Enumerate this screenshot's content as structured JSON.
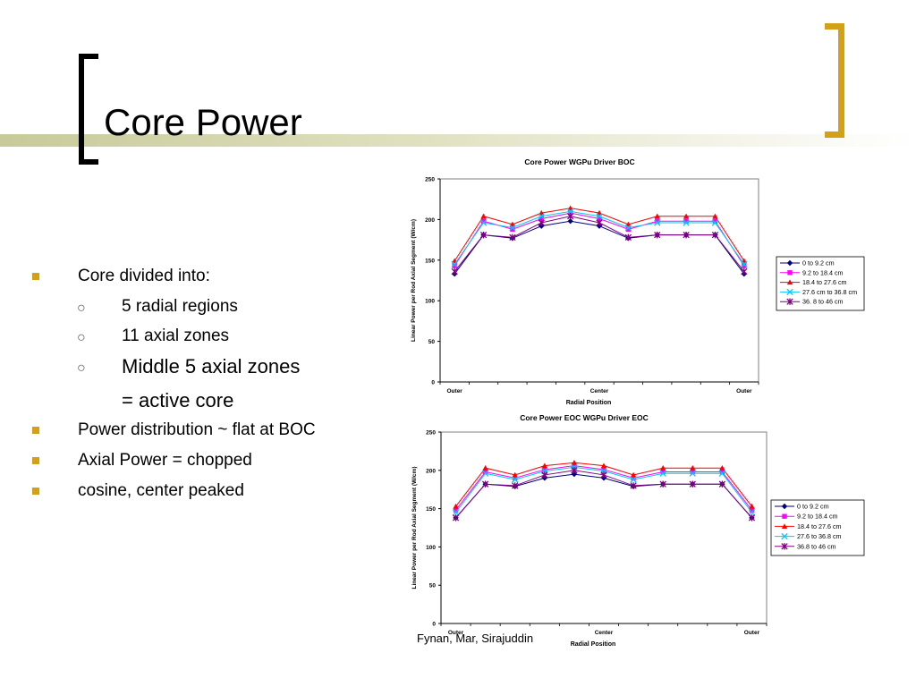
{
  "slide": {
    "title": "Core Power",
    "credit": "Fynan, Mar, Sirajuddin"
  },
  "bullets": [
    {
      "level": 1,
      "text": "Core divided into:"
    },
    {
      "level": 2,
      "text": "5 radial regions"
    },
    {
      "level": 2,
      "text": "11 axial zones"
    },
    {
      "level": 2,
      "text": "Middle 5 axial zones",
      "large": true
    },
    {
      "level": 3,
      "text": "=  active core",
      "large": true
    },
    {
      "level": 1,
      "text": "Power distribution ~ flat at BOC"
    },
    {
      "level": 1,
      "text": "Axial Power = chopped"
    },
    {
      "level": 1,
      "text": "cosine, center peaked"
    }
  ],
  "chart_data": [
    {
      "type": "line",
      "title": "Core Power WGPu Driver BOC",
      "xlabel": "Radial Position",
      "ylabel": "Linear Power per Rod Axial Segment (W/cm)",
      "ylim": [
        0,
        250
      ],
      "yticks": [
        0,
        50,
        100,
        150,
        200,
        250
      ],
      "x_tick_labels": [
        {
          "index": 0,
          "label": "Outer"
        },
        {
          "index": 5,
          "label": "Center"
        },
        {
          "index": 10,
          "label": "Outer"
        }
      ],
      "grid": false,
      "legend": "right",
      "series": [
        {
          "name": "0 to 9.2 cm",
          "color": "#000080",
          "marker": "diamond",
          "values": [
            133,
            181,
            177,
            192,
            198,
            192,
            177,
            181,
            181,
            181,
            133
          ]
        },
        {
          "name": "9.2 to 18.4 cm",
          "color": "#ff00ff",
          "marker": "square",
          "values": [
            143,
            198,
            188,
            201,
            208,
            201,
            188,
            198,
            198,
            198,
            143
          ]
        },
        {
          "name": "18.4 to 27.6 cm",
          "color": "#ff0000",
          "marker": "triangle",
          "values": [
            149,
            204,
            194,
            208,
            214,
            208,
            194,
            204,
            204,
            204,
            149
          ]
        },
        {
          "name": "27.6 cm to 36.8 cm",
          "color": "#00c8ff",
          "marker": "x",
          "values": [
            145,
            196,
            190,
            204,
            210,
            204,
            190,
            196,
            196,
            196,
            145
          ]
        },
        {
          "name": "36. 8 to 46 cm",
          "color": "#800080",
          "marker": "star",
          "values": [
            136,
            181,
            178,
            196,
            204,
            196,
            178,
            181,
            181,
            181,
            136
          ]
        }
      ]
    },
    {
      "type": "line",
      "title": "Core Power EOC WGPu Driver EOC",
      "xlabel": "Radial Position",
      "ylabel": "Linear Power per Rod Axial Segment (W/cm)",
      "ylim": [
        0,
        250
      ],
      "yticks": [
        0,
        50,
        100,
        150,
        200,
        250
      ],
      "x_tick_labels": [
        {
          "index": 0,
          "label": "Outer"
        },
        {
          "index": 5,
          "label": "Center"
        },
        {
          "index": 10,
          "label": "Outer"
        }
      ],
      "grid": false,
      "legend": "right",
      "series": [
        {
          "name": "0 to 9.2 cm",
          "color": "#000080",
          "marker": "diamond",
          "values": [
            138,
            182,
            179,
            190,
            195,
            190,
            179,
            182,
            182,
            182,
            138
          ]
        },
        {
          "name": "9.2 to 18.4 cm",
          "color": "#ff00ff",
          "marker": "square",
          "values": [
            148,
            198,
            190,
            201,
            206,
            201,
            190,
            198,
            198,
            198,
            148
          ]
        },
        {
          "name": "18.4 to 27.6 cm",
          "color": "#ff0000",
          "marker": "triangle",
          "values": [
            153,
            203,
            194,
            206,
            210,
            206,
            194,
            203,
            203,
            203,
            153
          ]
        },
        {
          "name": "27.6 to 36.8 cm",
          "color": "#00c8ff",
          "marker": "x",
          "values": [
            145,
            196,
            188,
            199,
            204,
            199,
            188,
            196,
            196,
            196,
            145
          ]
        },
        {
          "name": "36.8 to 46 cm",
          "color": "#800080",
          "marker": "star",
          "values": [
            138,
            182,
            180,
            194,
            200,
            194,
            180,
            182,
            182,
            182,
            138
          ]
        }
      ]
    }
  ]
}
